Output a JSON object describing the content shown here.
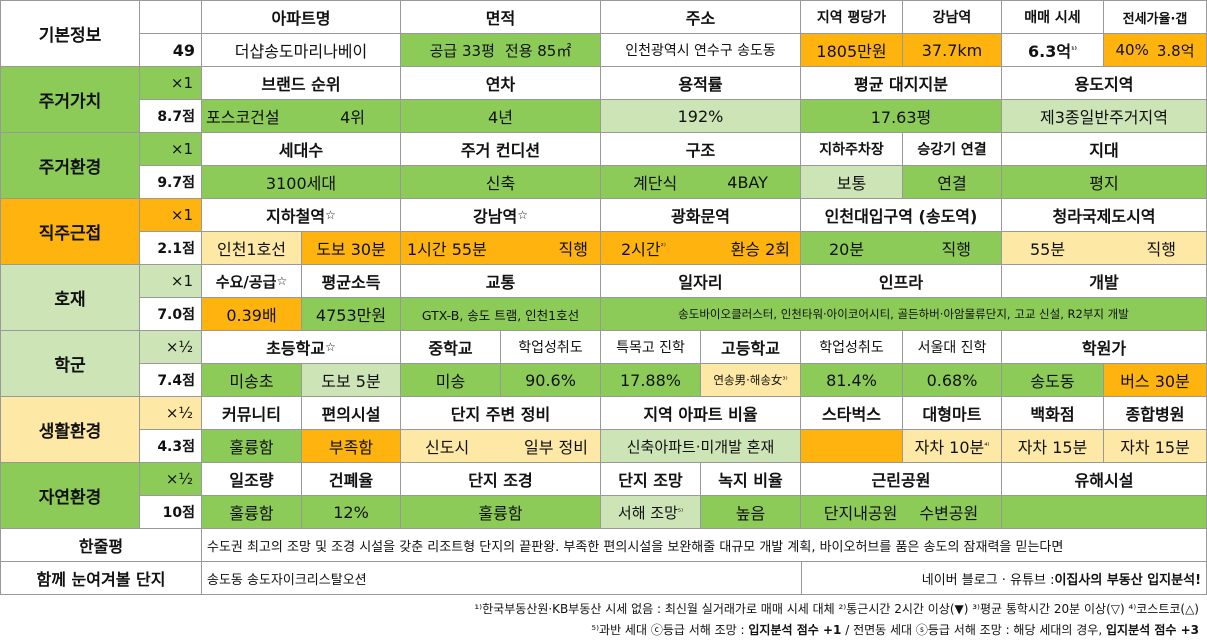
{
  "colors": {
    "green": "#8ccb58",
    "light_green": "#cde5b6",
    "orange": "#ffb30f",
    "yellow": "#fde8a5"
  },
  "basic": {
    "label": "기본정보",
    "score": "49",
    "h_name": "아파트명",
    "h_area": "면적",
    "h_addr": "주소",
    "h_price": "지역 평당가",
    "h_gangnam": "강남역",
    "h_sale": "매매 시세",
    "h_jeonse": "전세가율·갭",
    "name": "더샵송도마리나베이",
    "area_supply": "공급 33평",
    "area_exclusive": "전용 85㎡",
    "addr": "인천광역시 연수구 송도동",
    "price": "1805만원",
    "gangnam_dist": "37.7km",
    "sale": "6.3억",
    "sale_note": "¹⁾",
    "jeonse_rate": "40%",
    "jeonse_gap": "3.8억"
  },
  "categories": [
    {
      "name": "주거가치",
      "mult": "×1",
      "score": "8.7점"
    },
    {
      "name": "주거환경",
      "mult": "×1",
      "score": "9.7점"
    },
    {
      "name": "직주근접",
      "mult": "×1",
      "score": "2.1점"
    },
    {
      "name": "호재",
      "mult": "×1",
      "score": "7.0점"
    },
    {
      "name": "학군",
      "mult": "×½",
      "score": "7.4점"
    },
    {
      "name": "생활환경",
      "mult": "×½",
      "score": "4.3점"
    },
    {
      "name": "자연환경",
      "mult": "×½",
      "score": "10점"
    }
  ],
  "value": {
    "h1": "브랜드 순위",
    "h2": "연차",
    "h3": "용적률",
    "h4": "평균 대지지분",
    "h5": "용도지역",
    "brand": "포스코건설",
    "rank": "4위",
    "age": "4년",
    "far": "192%",
    "land": "17.63평",
    "zone": "제3종일반주거지역"
  },
  "env": {
    "h1": "세대수",
    "h2": "주거 컨디션",
    "h3": "구조",
    "h4": "지하주차장",
    "h5": "승강기 연결",
    "h6": "지대",
    "households": "3100세대",
    "condition": "신축",
    "structure": "계단식",
    "bay": "4BAY",
    "parking": "보통",
    "elevator": "연결",
    "terrain": "평지"
  },
  "commute": {
    "h1": "지하철역",
    "h2": "강남역",
    "h3": "광화문역",
    "h4": "인천대입구역 (송도역)",
    "h5": "청라국제도시역",
    "star": "☆",
    "station": "인천1호선",
    "walk": "도보 30분",
    "gn_time": "1시간 55분",
    "gn_type": "직행",
    "gw_time": "2시간",
    "gw_note": "²⁾",
    "gw_type": "환승 2회",
    "in_time": "20분",
    "in_type": "직행",
    "cr_time": "55분",
    "cr_type": "직행"
  },
  "devel": {
    "h1": "수요/공급",
    "h2": "평균소득",
    "h3": "교통",
    "h4": "일자리",
    "h5": "인프라",
    "h6": "개발",
    "star": "☆",
    "supply": "0.39배",
    "income": "4753만원",
    "traffic": "GTX-B, 송도 트램, 인천1호선",
    "jobs": "송도바이오클러스터, 인천타워·아이코어시티, 골든하버·아암물류단지, 고교 신설, R2부지 개발"
  },
  "school": {
    "h1": "초등학교",
    "h2": "중학교",
    "h3": "학업성취도",
    "h4": "특목고 진학",
    "h5": "고등학교",
    "h6": "학업성취도",
    "h7": "서울대 진학",
    "h8": "학원가",
    "star": "☆",
    "elem": "미송초",
    "elem_walk": "도보 5분",
    "middle": "미송",
    "mid_score": "90.6%",
    "special": "17.88%",
    "high": "연송男·해송女",
    "high_note": "³⁾",
    "high_score": "81.4%",
    "snu": "0.68%",
    "academy": "송도동",
    "academy_time": "버스 30분"
  },
  "life": {
    "h1": "커뮤니티",
    "h2": "편의시설",
    "h3": "단지 주변 정비",
    "h4": "지역 아파트 비율",
    "h5": "스타벅스",
    "h6": "대형마트",
    "h7": "백화점",
    "h8": "종합병원",
    "community": "훌륭함",
    "convenience": "부족함",
    "area_type": "신도시",
    "area_maint": "일부 정비",
    "ratio": "신축아파트·미개발 혼재",
    "starbucks": "",
    "mart": "자차 10분",
    "mart_note": "⁴⁾",
    "dept": "자차 15분",
    "hospital": "자차 15분"
  },
  "nature": {
    "h1": "일조량",
    "h2": "건폐율",
    "h3": "단지 조경",
    "h4": "단지 조망",
    "h5": "녹지 비율",
    "h6": "근린공원",
    "h7": "유해시설",
    "sunlight": "훌륭함",
    "bcr": "12%",
    "landscape": "훌륭함",
    "view": "서해 조망",
    "view_note": "⁵⁾",
    "green": "높음",
    "park1": "단지내공원",
    "park2": "수변공원",
    "hazard": ""
  },
  "summary": {
    "label": "한줄평",
    "text": "수도권 최고의 조망 및 조경 시설을 갖춘 리조트형 단지의 끝판왕. 부족한 편의시설을 보완해줄 대규모 개발 계획, 바이오허브를 품은 송도의 잠재력을 믿는다면"
  },
  "related": {
    "label": "함께 눈여겨볼 단지",
    "text": "송도동 송도자이크리스탈오션",
    "source_pre": "네이버 블로그 · 유튜브 : ",
    "source_bold": "이집사의 부동산 입지분석!"
  },
  "footnotes": {
    "line1": "¹⁾한국부동산원·KB부동산 시세 없음 : 최신월 실거래가로 매매 시세 대체 ²⁾통근시간 2시간 이상(▼) ³⁾평균 통학시간 20분 이상(▽) ⁴⁾코스트코(△)",
    "line2_a": "⁵⁾과반 세대 ⓒ등급 서해 조망 : ",
    "line2_b": "입지분석 점수 +1",
    "line2_c": " / 전면동 세대 ⓢ등급 서해 조망 : 해당 세대의 경우, ",
    "line2_d": "입지분석 점수 +3"
  }
}
